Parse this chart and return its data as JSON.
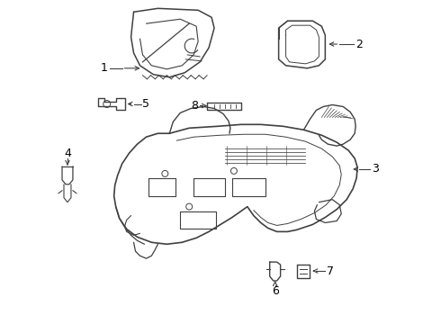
{
  "background_color": "#ffffff",
  "line_color": "#404040",
  "text_color": "#000000",
  "fig_width": 4.9,
  "fig_height": 3.6,
  "dpi": 100
}
